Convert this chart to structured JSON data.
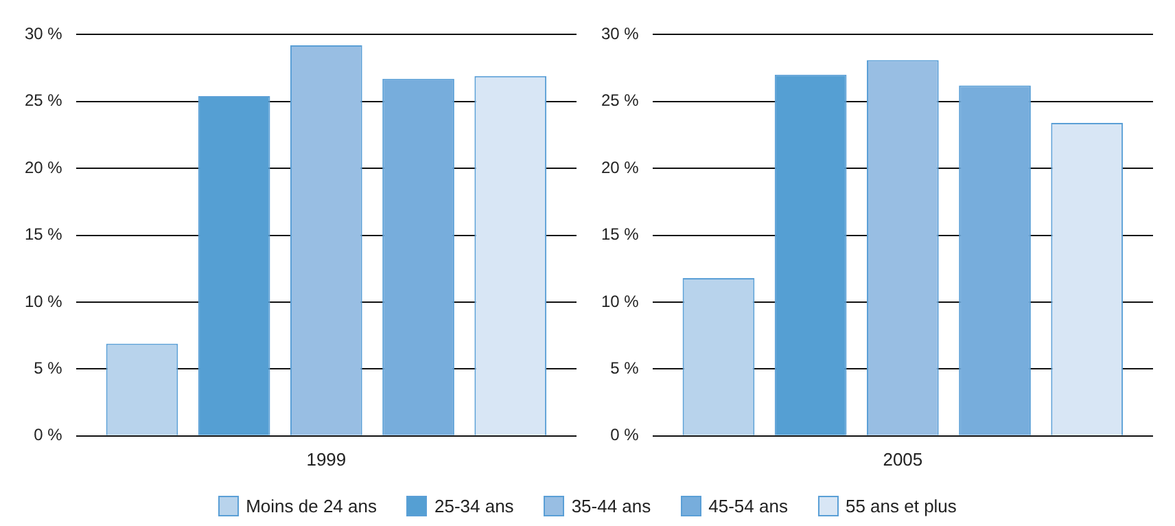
{
  "chart_data": [
    {
      "type": "bar",
      "categories": [
        "1999"
      ],
      "ylim": [
        0,
        30
      ],
      "yticks": [
        {
          "value": 0,
          "label": "0 %"
        },
        {
          "value": 5,
          "label": "5 %"
        },
        {
          "value": 10,
          "label": "10 %"
        },
        {
          "value": 15,
          "label": "15 %"
        },
        {
          "value": 20,
          "label": "20 %"
        },
        {
          "value": 25,
          "label": "25 %"
        },
        {
          "value": 30,
          "label": "30 %"
        }
      ],
      "grid": "y",
      "legend": "bottom",
      "series": [
        {
          "name": "Moins de 24 ans",
          "color": "#b8d3ec",
          "values": [
            6.9
          ]
        },
        {
          "name": "25-34 ans",
          "color": "#559fd3",
          "values": [
            25.4
          ]
        },
        {
          "name": "35-44 ans",
          "color": "#98bee3",
          "values": [
            29.2
          ]
        },
        {
          "name": "45-54 ans",
          "color": "#77addc",
          "values": [
            26.7
          ]
        },
        {
          "name": "55 ans et plus",
          "color": "#d8e6f5",
          "values": [
            26.9
          ]
        }
      ]
    },
    {
      "type": "bar",
      "categories": [
        "2005"
      ],
      "ylim": [
        0,
        30
      ],
      "yticks": [
        {
          "value": 0,
          "label": "0 %"
        },
        {
          "value": 5,
          "label": "5 %"
        },
        {
          "value": 10,
          "label": "10 %"
        },
        {
          "value": 15,
          "label": "15 %"
        },
        {
          "value": 20,
          "label": "20 %"
        },
        {
          "value": 25,
          "label": "25 %"
        },
        {
          "value": 30,
          "label": "30 %"
        }
      ],
      "grid": "y",
      "series": [
        {
          "color": "#b8d3ec",
          "values": [
            11.8
          ]
        },
        {
          "color": "#559fd3",
          "values": [
            27.0
          ]
        },
        {
          "color": "#98bee3",
          "values": [
            28.1
          ]
        },
        {
          "color": "#77addc",
          "values": [
            26.2
          ]
        },
        {
          "color": "#d8e6f5",
          "values": [
            23.4
          ]
        }
      ]
    }
  ]
}
